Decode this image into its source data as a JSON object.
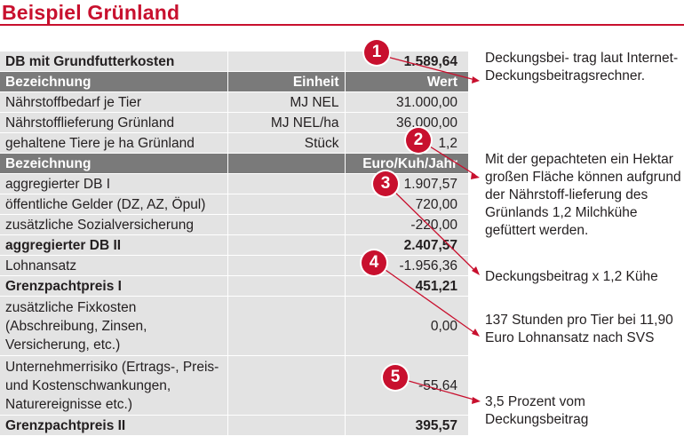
{
  "title": "Beispiel Grünland",
  "table": {
    "rows": [
      {
        "label": "DB mit Grundfutterkosten",
        "unit": "",
        "value": "1.589,64",
        "style": "bold-light"
      },
      {
        "label": "Bezeichnung",
        "unit": "Einheit",
        "value": "Wert",
        "style": "header"
      },
      {
        "label": "Nährstoffbedarf je Tier",
        "unit": "MJ NEL",
        "value": "31.000,00",
        "style": "light"
      },
      {
        "label": "Nährstofflieferung Grünland",
        "unit": "MJ NEL/ha",
        "value": "36.000,00",
        "style": "light"
      },
      {
        "label": "gehaltene Tiere je ha Grünland",
        "unit": "Stück",
        "value": "1,2",
        "style": "light"
      },
      {
        "label": "Bezeichnung",
        "unit": "",
        "value": "Euro/Kuh/Jahr",
        "style": "header"
      },
      {
        "label": "aggregierter DB I",
        "unit": "",
        "value": "1.907,57",
        "style": "light"
      },
      {
        "label": "öffentliche Gelder (DZ, AZ, Öpul)",
        "unit": "",
        "value": "720,00",
        "style": "light"
      },
      {
        "label": "zusätzliche Sozialversicherung",
        "unit": "",
        "value": "-220,00",
        "style": "light"
      },
      {
        "label": "aggregierter DB II",
        "unit": "",
        "value": "2.407,57",
        "style": "bold-light"
      },
      {
        "label": "Lohnansatz",
        "unit": "",
        "value": "-1.956,36",
        "style": "light"
      },
      {
        "label": "Grenzpachtpreis I",
        "unit": "",
        "value": "451,21",
        "style": "bold-light"
      },
      {
        "label": "zusätzliche Fixkosten (Abschreibung, Zinsen, Versicherung, etc.)",
        "unit": "",
        "value": "0,00",
        "style": "light-tall"
      },
      {
        "label": "Unternehmerrisiko (Ertrags-, Preis- und Kostenschwankungen, Naturereignisse etc.)",
        "unit": "",
        "value": "-55,64",
        "style": "light-tall"
      },
      {
        "label": "Grenzpachtpreis II",
        "unit": "",
        "value": "395,57",
        "style": "bold-light"
      }
    ]
  },
  "badges": [
    "1",
    "2",
    "3",
    "4",
    "5"
  ],
  "notes": [
    "Deckungsbei- trag laut Internet-Deckungsbeitragsrechner.",
    "Mit der gepachteten ein Hektar großen Fläche können aufgrund der Nährstoff-lieferung des Grünlands 1,2 Milchkühe gefüttert werden.",
    "Deckungsbeitrag x 1,2 Kühe",
    "137 Stunden pro Tier bei 11,90 Euro Lohnansatz nach SVS",
    "3,5 Prozent vom Deckungsbeitrag"
  ],
  "colors": {
    "accent": "#c8102e",
    "header_bg": "#7a7a7a",
    "row_bg": "#e3e3e3"
  }
}
